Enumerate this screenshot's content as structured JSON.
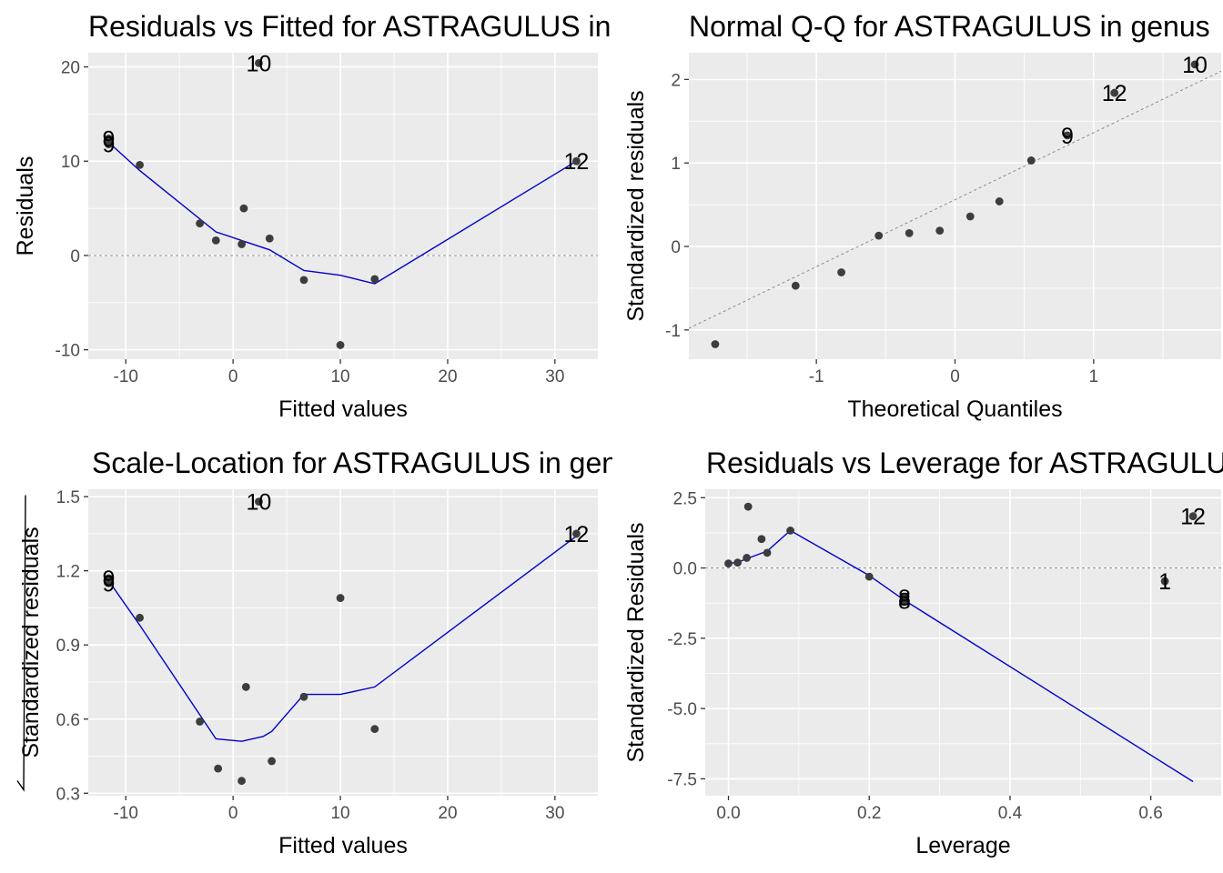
{
  "chart_data": [
    {
      "type": "scatter",
      "title": "Residuals vs Fitted for ASTRAGULUS in genus",
      "xlabel": "Fitted values",
      "ylabel": "Residuals",
      "ylabel_sqrt": false,
      "xlim": [
        -13.5,
        34
      ],
      "ylim": [
        -11,
        21.5
      ],
      "xticks": [
        -10,
        0,
        10,
        20,
        30
      ],
      "xticklabels": [
        "-10",
        "0",
        "10",
        "20",
        "30"
      ],
      "yticks": [
        -10,
        0,
        10,
        20
      ],
      "yticklabels": [
        "-10",
        "0",
        "10",
        "20"
      ],
      "refline": {
        "kind": "hline",
        "y": 0
      },
      "points": [
        {
          "x": -11.6,
          "y": 12.4
        },
        {
          "x": -11.6,
          "y": 11.8
        },
        {
          "x": -8.7,
          "y": 9.6
        },
        {
          "x": -3.1,
          "y": 3.4
        },
        {
          "x": -1.6,
          "y": 1.6
        },
        {
          "x": 0.8,
          "y": 1.2
        },
        {
          "x": 1.0,
          "y": 5.0
        },
        {
          "x": 2.4,
          "y": 20.4
        },
        {
          "x": 3.4,
          "y": 1.8
        },
        {
          "x": 6.6,
          "y": -2.6
        },
        {
          "x": 10.0,
          "y": -9.5
        },
        {
          "x": 13.2,
          "y": -2.5
        },
        {
          "x": 32.0,
          "y": 10.0
        }
      ],
      "smooth": {
        "x": [
          -11.6,
          -8.7,
          -1.6,
          3.4,
          6.6,
          10.0,
          13.2,
          32.0
        ],
        "y": [
          12.0,
          9.0,
          2.5,
          0.6,
          -1.6,
          -2.1,
          -3.0,
          10.0
        ]
      },
      "labels": [
        {
          "text": "10",
          "x": 2.4,
          "y": 20.4
        },
        {
          "text": "9",
          "x": -11.6,
          "y": 12.4
        },
        {
          "text": "9",
          "x": -11.6,
          "y": 11.8
        },
        {
          "text": "12",
          "x": 32.0,
          "y": 10.0
        }
      ]
    },
    {
      "type": "scatter",
      "title": "Normal Q-Q for ASTRAGULUS in genus",
      "xlabel": "Theoretical Quantiles",
      "ylabel": "Standardized residuals",
      "ylabel_sqrt": false,
      "xlim": [
        -1.92,
        1.92
      ],
      "ylim": [
        -1.35,
        2.32
      ],
      "xticks": [
        -1,
        0,
        1
      ],
      "xticklabels": [
        "-1",
        "0",
        "1"
      ],
      "yticks": [
        -1,
        0,
        1,
        2
      ],
      "yticklabels": [
        "-1",
        "0",
        "1",
        "2"
      ],
      "refline": {
        "kind": "segment",
        "x1": -1.92,
        "y1": -0.98,
        "x2": 1.92,
        "y2": 2.1
      },
      "points": [
        {
          "x": -1.73,
          "y": -1.17
        },
        {
          "x": -1.15,
          "y": -0.47
        },
        {
          "x": -0.82,
          "y": -0.31
        },
        {
          "x": -0.55,
          "y": 0.13
        },
        {
          "x": -0.33,
          "y": 0.16
        },
        {
          "x": -0.11,
          "y": 0.19
        },
        {
          "x": 0.11,
          "y": 0.36
        },
        {
          "x": 0.32,
          "y": 0.54
        },
        {
          "x": 0.55,
          "y": 1.03
        },
        {
          "x": 0.81,
          "y": 1.33
        },
        {
          "x": 1.15,
          "y": 1.84
        },
        {
          "x": 1.73,
          "y": 2.18
        }
      ],
      "labels": [
        {
          "text": "10",
          "x": 1.73,
          "y": 2.18
        },
        {
          "text": "12",
          "x": 1.15,
          "y": 1.84
        },
        {
          "text": "9",
          "x": 0.81,
          "y": 1.33
        }
      ]
    },
    {
      "type": "scatter",
      "title": "Scale-Location for ASTRAGULUS in genus",
      "xlabel": "Fitted values",
      "ylabel": "Standardized residuals",
      "ylabel_sqrt": true,
      "xlim": [
        -13.5,
        34
      ],
      "ylim": [
        0.29,
        1.53
      ],
      "xticks": [
        -10,
        0,
        10,
        20,
        30
      ],
      "xticklabels": [
        "-10",
        "0",
        "10",
        "20",
        "30"
      ],
      "yticks": [
        0.3,
        0.6,
        0.9,
        1.2,
        1.5
      ],
      "yticklabels": [
        "0.3",
        "0.6",
        "0.9",
        "1.2",
        "1.5"
      ],
      "refline": null,
      "points": [
        {
          "x": -11.6,
          "y": 1.17
        },
        {
          "x": -11.6,
          "y": 1.15
        },
        {
          "x": -8.7,
          "y": 1.01
        },
        {
          "x": -3.1,
          "y": 0.59
        },
        {
          "x": -1.4,
          "y": 0.4
        },
        {
          "x": 0.8,
          "y": 0.35
        },
        {
          "x": 1.2,
          "y": 0.73
        },
        {
          "x": 2.4,
          "y": 1.48
        },
        {
          "x": 3.6,
          "y": 0.43
        },
        {
          "x": 6.6,
          "y": 0.69
        },
        {
          "x": 10.0,
          "y": 1.09
        },
        {
          "x": 13.2,
          "y": 0.56
        },
        {
          "x": 32.0,
          "y": 1.35
        }
      ],
      "smooth": {
        "x": [
          -11.6,
          -8.7,
          -1.6,
          0.8,
          2.8,
          3.6,
          6.6,
          10.0,
          13.2,
          32.0
        ],
        "y": [
          1.16,
          0.98,
          0.52,
          0.51,
          0.53,
          0.55,
          0.7,
          0.7,
          0.73,
          1.34
        ]
      },
      "labels": [
        {
          "text": "10",
          "x": 2.4,
          "y": 1.48
        },
        {
          "text": "9",
          "x": -11.6,
          "y": 1.17
        },
        {
          "text": "9",
          "x": -11.6,
          "y": 1.15
        },
        {
          "text": "12",
          "x": 32.0,
          "y": 1.35
        }
      ]
    },
    {
      "type": "scatter",
      "title": "Residuals vs Leverage for ASTRAGULUS in genus",
      "xlabel": "Leverage",
      "ylabel": "Standardized Residuals",
      "ylabel_sqrt": false,
      "xlim": [
        -0.033,
        0.7
      ],
      "ylim": [
        -8.1,
        2.8
      ],
      "xticks": [
        0.0,
        0.2,
        0.4,
        0.6
      ],
      "xticklabels": [
        "0.0",
        "0.2",
        "0.4",
        "0.6"
      ],
      "yticks": [
        -7.5,
        -5.0,
        -2.5,
        0.0,
        2.5
      ],
      "yticklabels": [
        "-7.5",
        "-5.0",
        "-2.5",
        "0.0",
        "2.5"
      ],
      "refline": {
        "kind": "hline",
        "y": 0
      },
      "points": [
        {
          "x": 0.0,
          "y": 0.16
        },
        {
          "x": 0.013,
          "y": 0.19
        },
        {
          "x": 0.026,
          "y": 0.36
        },
        {
          "x": 0.028,
          "y": 2.18
        },
        {
          "x": 0.047,
          "y": 1.03
        },
        {
          "x": 0.055,
          "y": 0.54
        },
        {
          "x": 0.088,
          "y": 1.33
        },
        {
          "x": 0.2,
          "y": -0.31
        },
        {
          "x": 0.25,
          "y": -1.05
        },
        {
          "x": 0.25,
          "y": -1.17
        },
        {
          "x": 0.62,
          "y": -0.47
        },
        {
          "x": 0.66,
          "y": 1.84
        }
      ],
      "smooth": {
        "x": [
          0.0,
          0.013,
          0.026,
          0.055,
          0.088,
          0.2,
          0.25,
          0.66
        ],
        "y": [
          0.16,
          0.2,
          0.33,
          0.6,
          1.33,
          -0.27,
          -1.15,
          -7.6
        ]
      },
      "labels": [
        {
          "text": "12",
          "x": 0.66,
          "y": 1.84
        },
        {
          "text": "1",
          "x": 0.62,
          "y": -0.47
        },
        {
          "text": "8",
          "x": 0.25,
          "y": -1.05
        },
        {
          "text": "8",
          "x": 0.25,
          "y": -1.17
        }
      ]
    }
  ],
  "colors": {
    "panel_background": "#ebebeb",
    "grid_major": "#ffffff",
    "point": "#3d3d3d",
    "smooth_line": "#0000cc",
    "reference_line": "#8a8a8a",
    "text": "#000000",
    "tick_label": "#4d4d4d"
  }
}
